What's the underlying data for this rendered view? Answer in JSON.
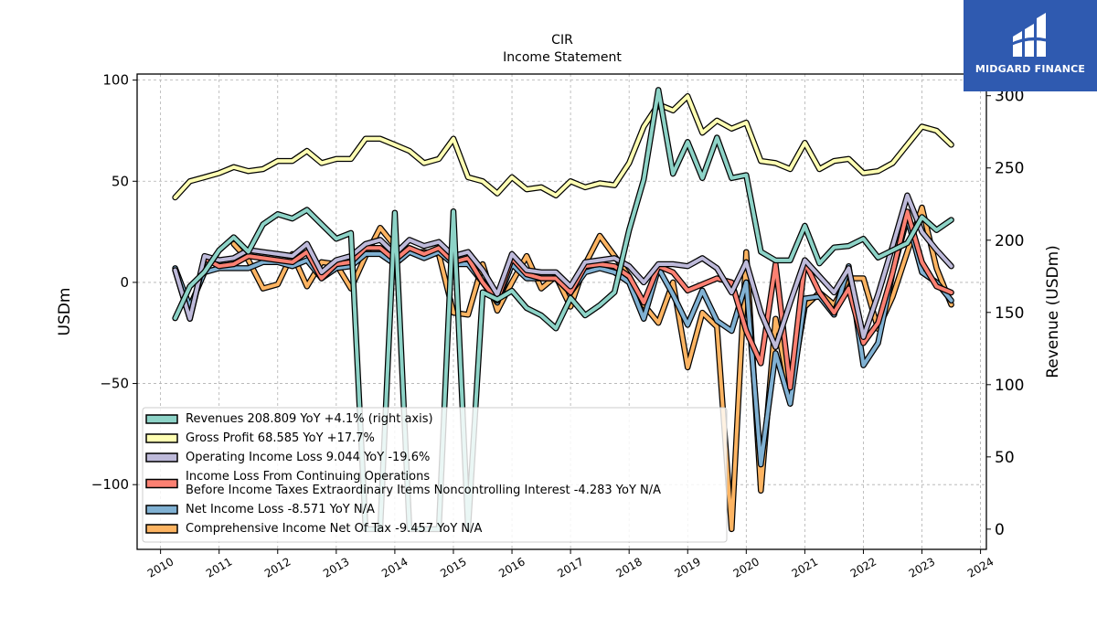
{
  "logo": {
    "text": "MIDGARD FINANCE"
  },
  "chart_data": {
    "type": "line",
    "title": "CIR",
    "subtitle": "Income Statement",
    "ylabel": "USDm",
    "ylabel_right": "Revenue (USDm)",
    "ylim": [
      -132,
      103
    ],
    "ylim_right": [
      -14,
      315
    ],
    "yticks": [
      100,
      50,
      0,
      -50,
      -100
    ],
    "yticks_labels": [
      "100",
      "50",
      "0",
      "−50",
      "−100"
    ],
    "yticks_right": [
      300,
      250,
      200,
      150,
      100,
      50,
      0
    ],
    "xlim": [
      2009.6,
      2024.1
    ],
    "xticks": [
      2010,
      2011,
      2012,
      2013,
      2014,
      2015,
      2016,
      2017,
      2018,
      2019,
      2020,
      2021,
      2022,
      2023,
      2024
    ],
    "grid": true,
    "legend_position": "lower-left",
    "x": [
      2010.25,
      2010.5,
      2010.75,
      2011.0,
      2011.25,
      2011.5,
      2011.75,
      2012.0,
      2012.25,
      2012.5,
      2012.75,
      2013.0,
      2013.25,
      2013.5,
      2013.75,
      2014.0,
      2014.25,
      2014.5,
      2014.75,
      2015.0,
      2015.25,
      2015.5,
      2015.75,
      2016.0,
      2016.25,
      2016.5,
      2016.75,
      2017.0,
      2017.25,
      2017.5,
      2017.75,
      2018.0,
      2018.25,
      2018.5,
      2018.75,
      2019.0,
      2019.25,
      2019.5,
      2019.75,
      2020.0,
      2020.25,
      2020.5,
      2020.75,
      2021.0,
      2021.25,
      2021.5,
      2021.75,
      2022.0,
      2022.25,
      2022.5,
      2022.75,
      2023.0,
      2023.25,
      2023.5
    ],
    "series": [
      {
        "name": "Revenues  208.809 YoY +4.1% (right axis)",
        "axis": "right",
        "color": "#8dd3c7",
        "values": [
          146,
          168,
          178,
          193,
          202,
          192,
          211,
          218,
          215,
          221,
          211,
          201,
          205,
          0,
          0,
          219,
          0,
          0,
          0,
          220,
          0,
          164,
          159,
          165,
          153,
          148,
          139,
          160,
          148,
          155,
          164,
          207,
          242,
          304,
          246,
          268,
          243,
          271,
          243,
          245,
          192,
          186,
          186,
          210,
          184,
          195,
          196,
          201,
          188,
          193,
          198,
          216,
          207,
          214
        ]
      },
      {
        "name": "Gross Profit  68.585 YoY +17.7%",
        "color": "#ffffb3",
        "values": [
          42,
          50,
          52,
          54,
          57,
          55,
          56,
          60,
          60,
          65,
          59,
          61,
          61,
          71,
          71,
          68,
          65,
          59,
          61,
          71,
          52,
          50,
          44,
          52,
          46,
          47,
          43,
          50,
          47,
          49,
          48,
          59,
          77,
          88,
          85,
          92,
          74,
          80,
          76,
          79,
          60,
          59,
          56,
          69,
          56,
          60,
          61,
          54,
          55,
          59,
          68,
          77,
          75,
          68
        ]
      },
      {
        "name": "Operating Income Loss  9.044 YoY -19.6%",
        "color": "#bebada",
        "values": [
          6,
          -18,
          13,
          11,
          12,
          16,
          15,
          14,
          13,
          19,
          5,
          11,
          13,
          19,
          21,
          14,
          21,
          18,
          20,
          13,
          15,
          6,
          -6,
          14,
          6,
          5,
          5,
          -2,
          10,
          11,
          12,
          8,
          0,
          9,
          9,
          8,
          12,
          7,
          -5,
          10,
          -15,
          -32,
          -10,
          11,
          3,
          -5,
          7,
          -27,
          -6,
          18,
          43,
          25,
          16,
          8
        ]
      },
      {
        "name": "Income Loss From Continuing Operations\nBefore Income Taxes Extraordinary Items Noncontrolling Interest  -4.283 YoY N/A",
        "color": "#fb8072",
        "values": [
          6,
          -18,
          12,
          8,
          9,
          13,
          12,
          11,
          10,
          15,
          2,
          9,
          10,
          17,
          17,
          11,
          17,
          14,
          17,
          10,
          12,
          0,
          -9,
          12,
          4,
          2,
          2,
          -5,
          8,
          9,
          8,
          3,
          -10,
          8,
          5,
          -4,
          -1,
          2,
          0,
          -24,
          -40,
          9,
          -52,
          10,
          -5,
          -15,
          -3,
          -30,
          -20,
          5,
          35,
          10,
          -2,
          -5
        ]
      },
      {
        "name": "Net Income Loss  -8.571 YoY N/A",
        "color": "#80b1d3",
        "values": [
          7,
          -12,
          5,
          7,
          7,
          7,
          10,
          10,
          8,
          11,
          2,
          7,
          8,
          14,
          14,
          9,
          15,
          12,
          15,
          9,
          9,
          0,
          -10,
          9,
          2,
          2,
          2,
          -5,
          5,
          7,
          5,
          0,
          -18,
          7,
          -6,
          -21,
          -4,
          -19,
          -24,
          0,
          -90,
          -35,
          -60,
          -8,
          -7,
          -16,
          8,
          -41,
          -30,
          5,
          32,
          5,
          0,
          -9
        ]
      },
      {
        "name": "Comprehensive Income Net Of Tax  -9.457 YoY N/A",
        "color": "#fdb462",
        "values": [
          null,
          null,
          null,
          null,
          19,
          11,
          -3,
          -1,
          14,
          -2,
          10,
          9,
          -3,
          13,
          27,
          18,
          15,
          15,
          14,
          -15,
          -16,
          9,
          -14,
          0,
          13,
          -3,
          3,
          -12,
          9,
          23,
          13,
          3,
          -11,
          -20,
          0,
          -42,
          -15,
          -22,
          -122,
          15,
          -103,
          -18,
          -55,
          -12,
          -5,
          -11,
          2,
          2,
          -23,
          -7,
          15,
          37,
          7,
          -11
        ]
      }
    ]
  }
}
